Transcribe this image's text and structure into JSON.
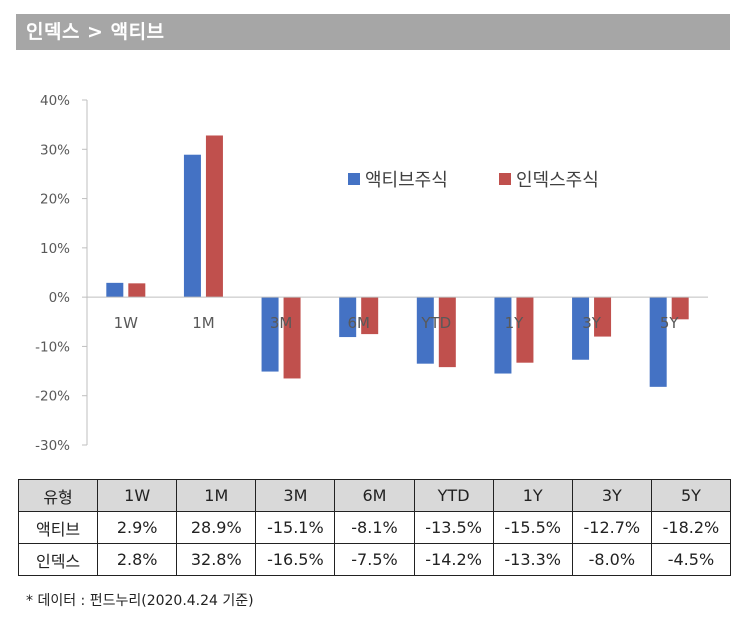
{
  "header": {
    "title": "인덱스 > 액티브"
  },
  "chart_data": {
    "type": "bar",
    "categories": [
      "1W",
      "1M",
      "3M",
      "6M",
      "YTD",
      "1Y",
      "3Y",
      "5Y"
    ],
    "series": [
      {
        "name": "액티브주식",
        "color": "#4472c4",
        "values": [
          2.9,
          28.9,
          -15.1,
          -8.1,
          -13.5,
          -15.5,
          -12.7,
          -18.2
        ]
      },
      {
        "name": "인덱스주식",
        "color": "#c0504d",
        "values": [
          2.8,
          32.8,
          -16.5,
          -7.5,
          -14.2,
          -13.3,
          -8.0,
          -4.5
        ]
      }
    ],
    "ylim": [
      -30,
      40
    ],
    "yticks": [
      40,
      30,
      20,
      10,
      0,
      -10,
      -20,
      -30
    ],
    "ytick_labels": [
      "40%",
      "30%",
      "20%",
      "10%",
      "0%",
      "-10%",
      "-20%",
      "-30%"
    ],
    "legend_position": "top-right",
    "title": "",
    "xlabel": "",
    "ylabel": ""
  },
  "table": {
    "headers": [
      "유형",
      "1W",
      "1M",
      "3M",
      "6M",
      "YTD",
      "1Y",
      "3Y",
      "5Y"
    ],
    "rows": [
      {
        "label": "액티브",
        "cells": [
          "2.9%",
          "28.9%",
          "-15.1%",
          "-8.1%",
          "-13.5%",
          "-15.5%",
          "-12.7%",
          "-18.2%"
        ]
      },
      {
        "label": "인덱스",
        "cells": [
          "2.8%",
          "32.8%",
          "-16.5%",
          "-7.5%",
          "-14.2%",
          "-13.3%",
          "-8.0%",
          "-4.5%"
        ]
      }
    ]
  },
  "footnote": "* 데이터 : 펀드누리(2020.4.24 기준)"
}
